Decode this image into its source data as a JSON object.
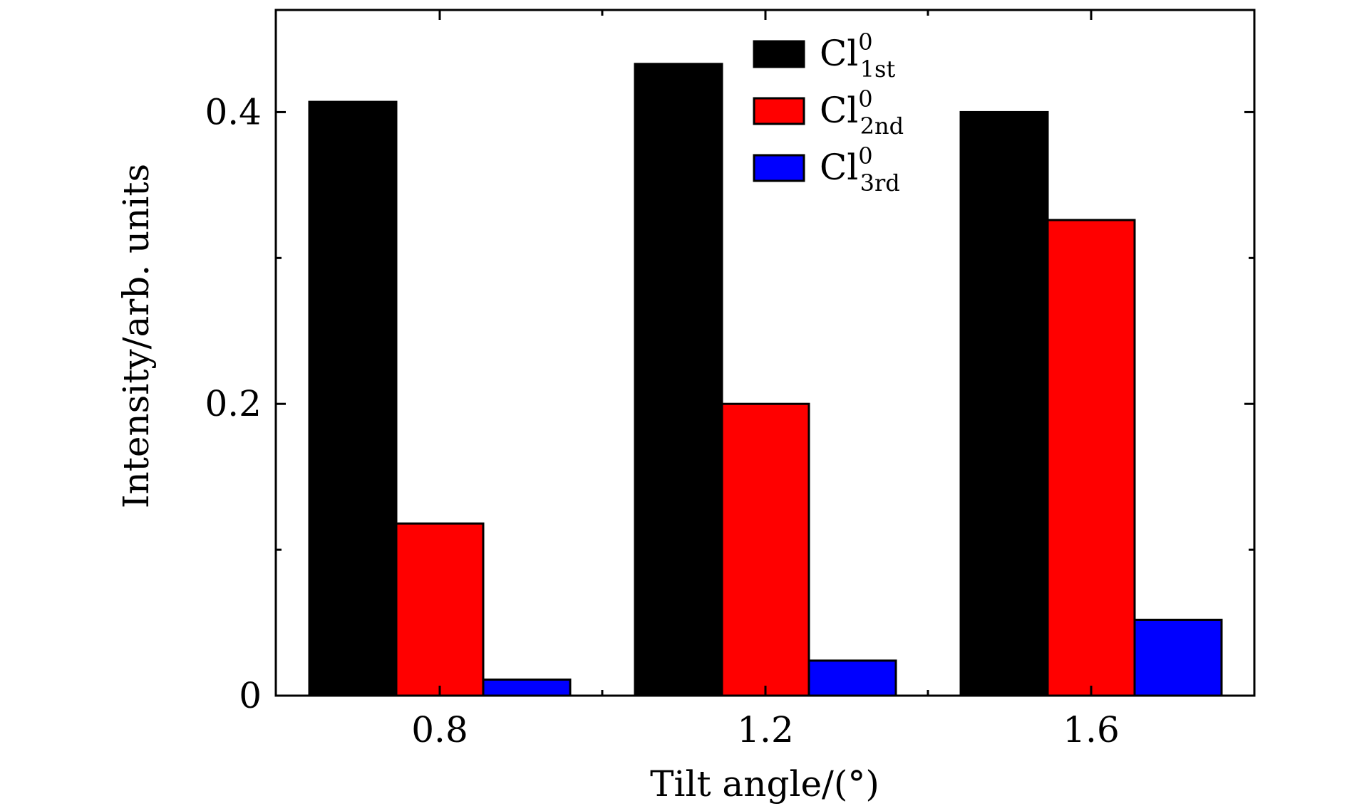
{
  "chart_data": {
    "type": "bar",
    "categories": [
      "0.8",
      "1.2",
      "1.6"
    ],
    "series": [
      {
        "name": "Cl1st0",
        "legend_base": "Cl",
        "legend_sup": "0",
        "legend_sub": "1st",
        "color": "#000000",
        "values": [
          0.407,
          0.433,
          0.4
        ]
      },
      {
        "name": "Cl2nd0",
        "legend_base": "Cl",
        "legend_sup": "0",
        "legend_sub": "2nd",
        "color": "#ff0000",
        "values": [
          0.118,
          0.2,
          0.326
        ]
      },
      {
        "name": "Cl3rd0",
        "legend_base": "Cl",
        "legend_sup": "0",
        "legend_sub": "3rd",
        "color": "#0000ff",
        "values": [
          0.011,
          0.024,
          0.052
        ]
      }
    ],
    "xlabel": "Tilt angle/(°)",
    "ylabel": "Intensity/arb. units",
    "ylim": [
      0,
      0.47
    ],
    "y_ticks_major": [
      0,
      0.2,
      0.4
    ],
    "y_tick_labels": [
      "0",
      "0.2",
      "0.4"
    ],
    "y_ticks_minor": [
      0.1,
      0.3
    ],
    "grid": false,
    "legend_position": "top-center"
  }
}
